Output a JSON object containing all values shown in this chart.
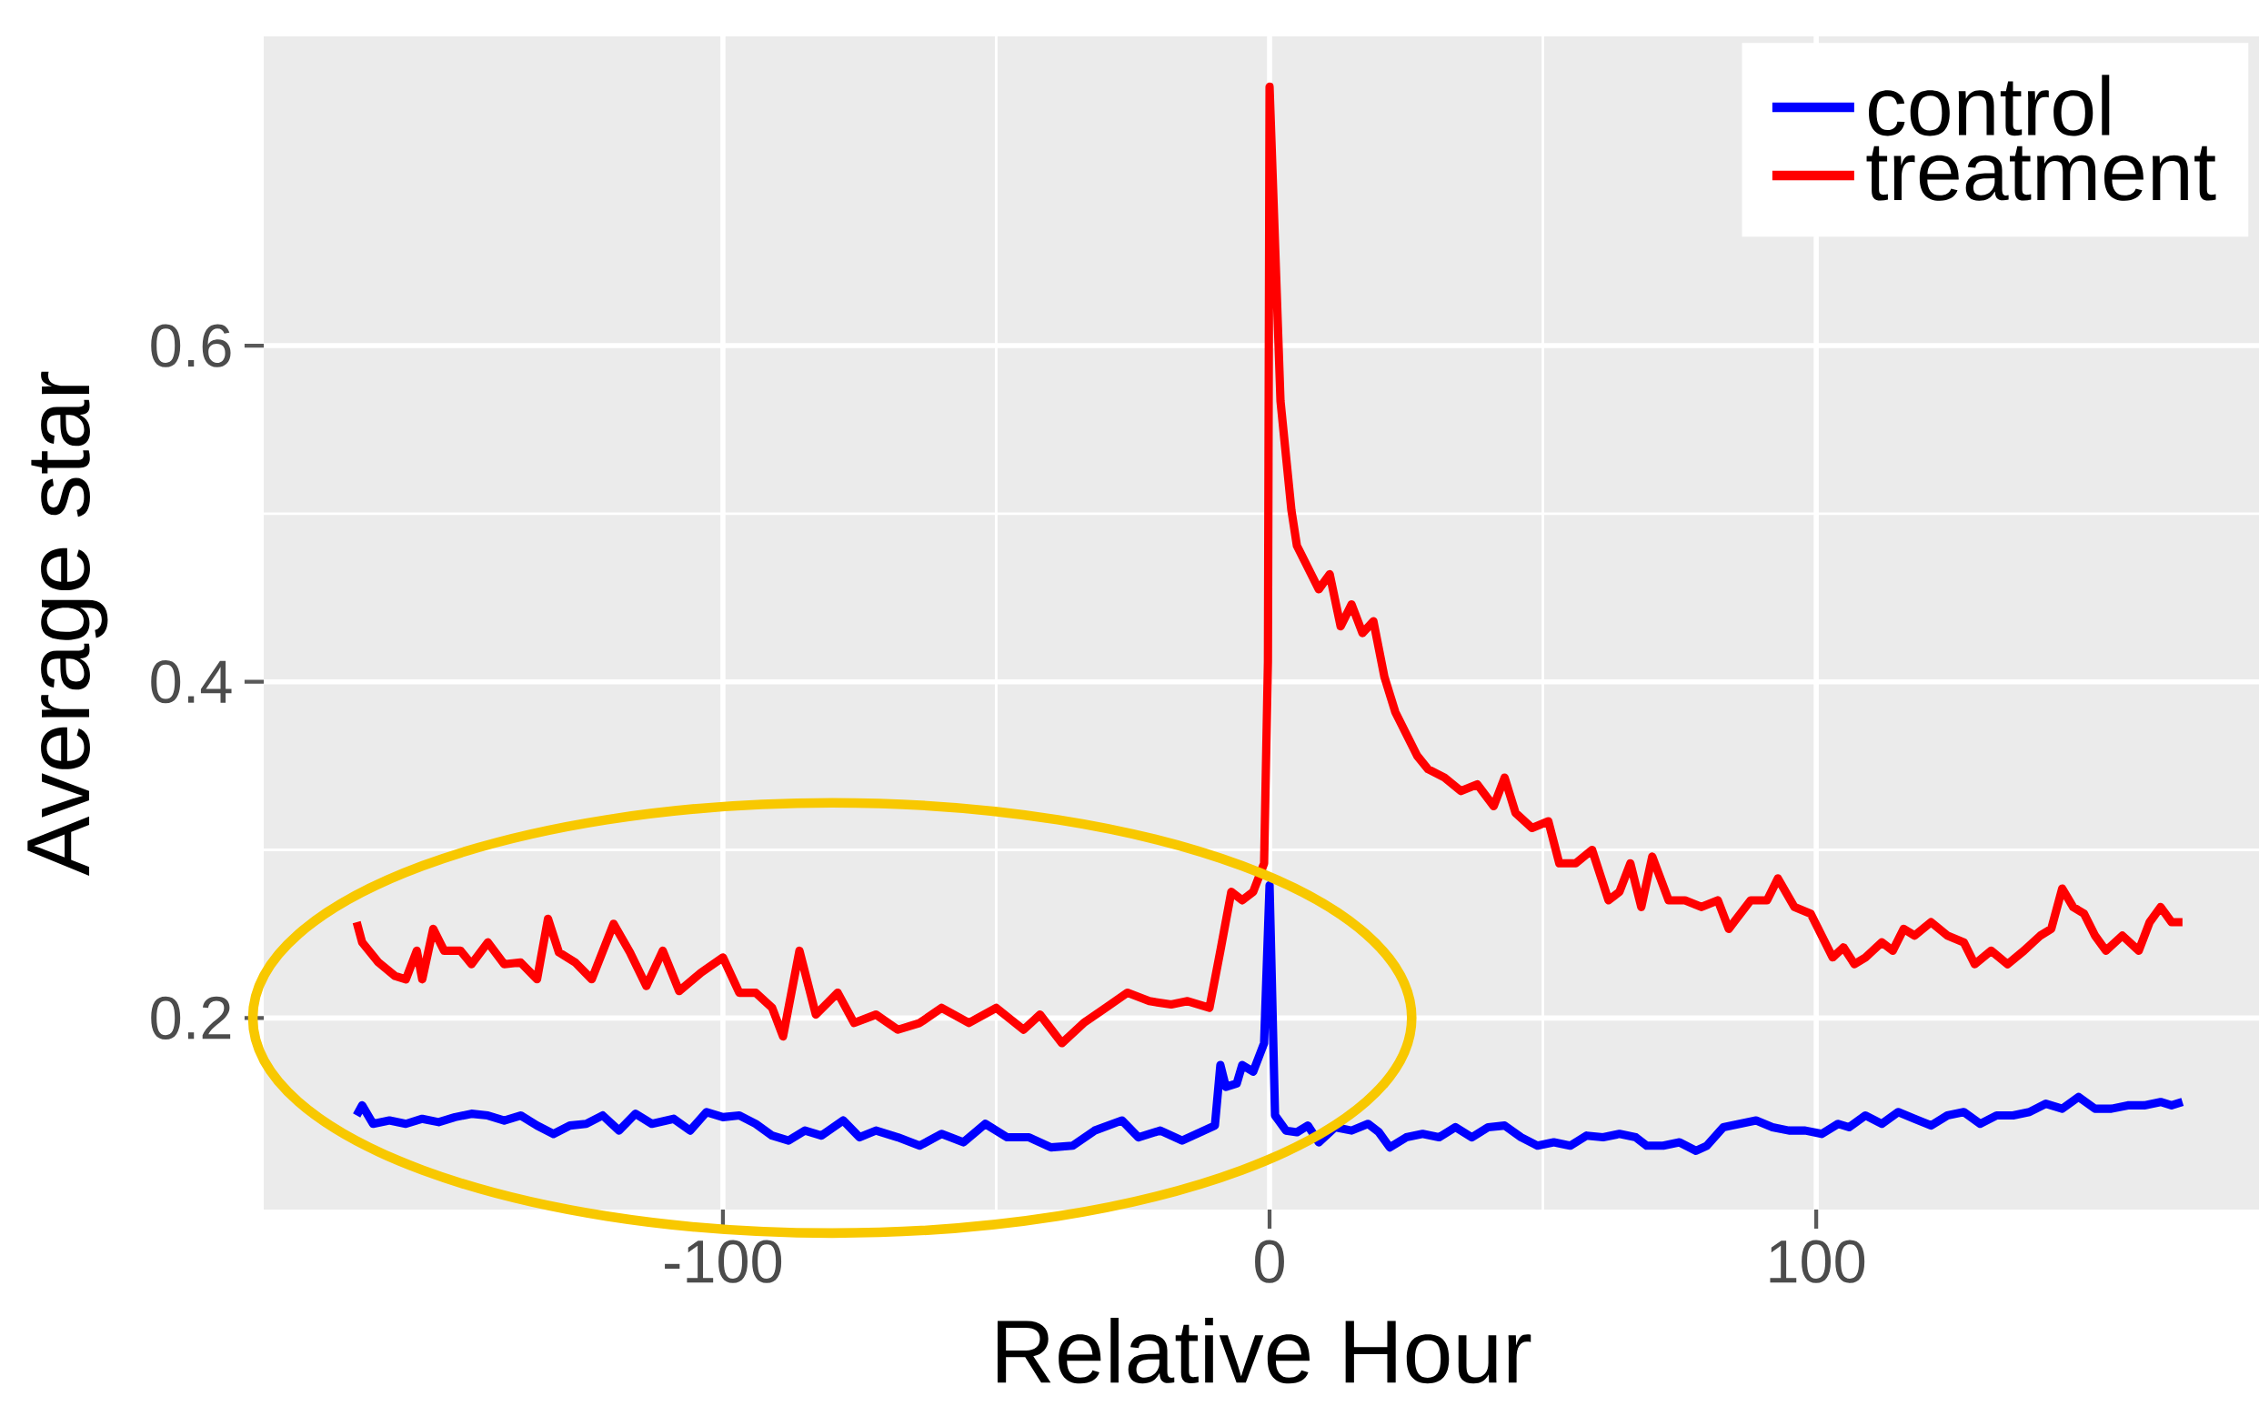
{
  "chart_data": {
    "type": "line",
    "xlabel": "Relative Hour",
    "ylabel": "Average star",
    "xlim": [
      -184,
      181
    ],
    "ylim": [
      0.086,
      0.784
    ],
    "xticks": [
      -100,
      0,
      100
    ],
    "yticks": [
      0.2,
      0.4,
      0.6
    ],
    "grid": true,
    "legend": "top right",
    "line_style": "solid",
    "marker": "none",
    "series": [
      {
        "name": "control",
        "color": "#0000ff",
        "x": [
          -167,
          -166,
          -164,
          -161,
          -158,
          -155,
          -152,
          -149,
          -146,
          -143,
          -140,
          -137,
          -134,
          -131,
          -128,
          -125,
          -122,
          -119,
          -116,
          -113,
          -109,
          -106,
          -103,
          -100,
          -97,
          -94,
          -91,
          -88,
          -85,
          -82,
          -78,
          -75,
          -72,
          -68,
          -64,
          -60,
          -56,
          -52,
          -48,
          -44,
          -40,
          -36,
          -32,
          -27,
          -24,
          -20,
          -16,
          -12,
          -10,
          -9,
          -8,
          -6,
          -5,
          -3,
          -1,
          0,
          1,
          3,
          5,
          7,
          9,
          12,
          15,
          18,
          20,
          22,
          25,
          28,
          31,
          34,
          37,
          40,
          43,
          46,
          49,
          52,
          55,
          58,
          61,
          64,
          67,
          69,
          72,
          75,
          78,
          80,
          83,
          86,
          89,
          92,
          95,
          98,
          101,
          104,
          106,
          109,
          112,
          115,
          118,
          121,
          124,
          127,
          130,
          133,
          136,
          139,
          142,
          145,
          148,
          151,
          154,
          157,
          160,
          163,
          165,
          167
        ],
        "values": [
          0.142,
          0.148,
          0.137,
          0.139,
          0.137,
          0.14,
          0.138,
          0.141,
          0.143,
          0.142,
          0.139,
          0.142,
          0.136,
          0.131,
          0.136,
          0.137,
          0.142,
          0.133,
          0.143,
          0.137,
          0.14,
          0.133,
          0.144,
          0.141,
          0.142,
          0.137,
          0.13,
          0.127,
          0.133,
          0.13,
          0.139,
          0.129,
          0.133,
          0.129,
          0.124,
          0.131,
          0.126,
          0.137,
          0.129,
          0.129,
          0.123,
          0.124,
          0.133,
          0.139,
          0.129,
          0.133,
          0.127,
          0.133,
          0.136,
          0.172,
          0.159,
          0.161,
          0.172,
          0.168,
          0.185,
          0.279,
          0.142,
          0.133,
          0.132,
          0.136,
          0.126,
          0.135,
          0.133,
          0.137,
          0.132,
          0.123,
          0.129,
          0.131,
          0.129,
          0.135,
          0.129,
          0.135,
          0.136,
          0.129,
          0.124,
          0.126,
          0.124,
          0.13,
          0.129,
          0.131,
          0.129,
          0.124,
          0.124,
          0.126,
          0.121,
          0.124,
          0.135,
          0.137,
          0.139,
          0.135,
          0.133,
          0.133,
          0.131,
          0.137,
          0.135,
          0.142,
          0.137,
          0.144,
          0.14,
          0.136,
          0.142,
          0.144,
          0.137,
          0.142,
          0.142,
          0.144,
          0.149,
          0.146,
          0.153,
          0.146,
          0.146,
          0.148,
          0.148,
          0.15,
          0.148,
          0.15
        ]
      },
      {
        "name": "treatment",
        "color": "#ff0000",
        "x": [
          -167,
          -166,
          -163,
          -160,
          -158,
          -156,
          -155,
          -153,
          -151,
          -148,
          -146,
          -143,
          -140,
          -137,
          -134,
          -132,
          -130,
          -127,
          -124,
          -120,
          -117,
          -114,
          -111,
          -108,
          -104,
          -100,
          -97,
          -94,
          -91,
          -89,
          -86,
          -83,
          -79,
          -76,
          -72,
          -68,
          -64,
          -60,
          -55,
          -50,
          -45,
          -42,
          -38,
          -34,
          -30,
          -26,
          -22,
          -18,
          -15,
          -11,
          -9,
          -7,
          -5,
          -3,
          -1,
          -0.3,
          0,
          2,
          4,
          5,
          7,
          9,
          11,
          13,
          15,
          17,
          19,
          21,
          23,
          25,
          27,
          29,
          32,
          35,
          38,
          41,
          43,
          45,
          48,
          51,
          53,
          56,
          59,
          62,
          64,
          66,
          68,
          70,
          73,
          76,
          79,
          82,
          84,
          88,
          91,
          93,
          96,
          99,
          101,
          103,
          105,
          107,
          109,
          112,
          114,
          116,
          118,
          121,
          124,
          127,
          129,
          132,
          135,
          138,
          141,
          143,
          145,
          147,
          149,
          151,
          153,
          156,
          159,
          161,
          163,
          165,
          167
        ],
        "values": [
          0.257,
          0.245,
          0.233,
          0.225,
          0.223,
          0.24,
          0.223,
          0.253,
          0.24,
          0.24,
          0.232,
          0.245,
          0.232,
          0.233,
          0.223,
          0.259,
          0.239,
          0.233,
          0.223,
          0.256,
          0.239,
          0.219,
          0.24,
          0.216,
          0.227,
          0.236,
          0.215,
          0.215,
          0.206,
          0.189,
          0.24,
          0.202,
          0.215,
          0.197,
          0.202,
          0.193,
          0.197,
          0.206,
          0.197,
          0.206,
          0.193,
          0.202,
          0.185,
          0.197,
          0.206,
          0.215,
          0.21,
          0.208,
          0.21,
          0.206,
          0.24,
          0.275,
          0.27,
          0.275,
          0.292,
          0.412,
          0.754,
          0.567,
          0.502,
          0.481,
          0.468,
          0.455,
          0.464,
          0.433,
          0.446,
          0.429,
          0.436,
          0.403,
          0.382,
          0.369,
          0.356,
          0.348,
          0.343,
          0.335,
          0.339,
          0.326,
          0.343,
          0.322,
          0.313,
          0.317,
          0.292,
          0.292,
          0.3,
          0.27,
          0.275,
          0.292,
          0.266,
          0.296,
          0.27,
          0.27,
          0.266,
          0.27,
          0.253,
          0.27,
          0.27,
          0.283,
          0.266,
          0.262,
          0.249,
          0.236,
          0.242,
          0.232,
          0.236,
          0.245,
          0.24,
          0.253,
          0.249,
          0.257,
          0.249,
          0.245,
          0.232,
          0.24,
          0.232,
          0.24,
          0.249,
          0.253,
          0.277,
          0.266,
          0.262,
          0.249,
          0.24,
          0.249,
          0.24,
          0.257,
          0.266,
          0.257,
          0.257
        ]
      }
    ]
  }
}
